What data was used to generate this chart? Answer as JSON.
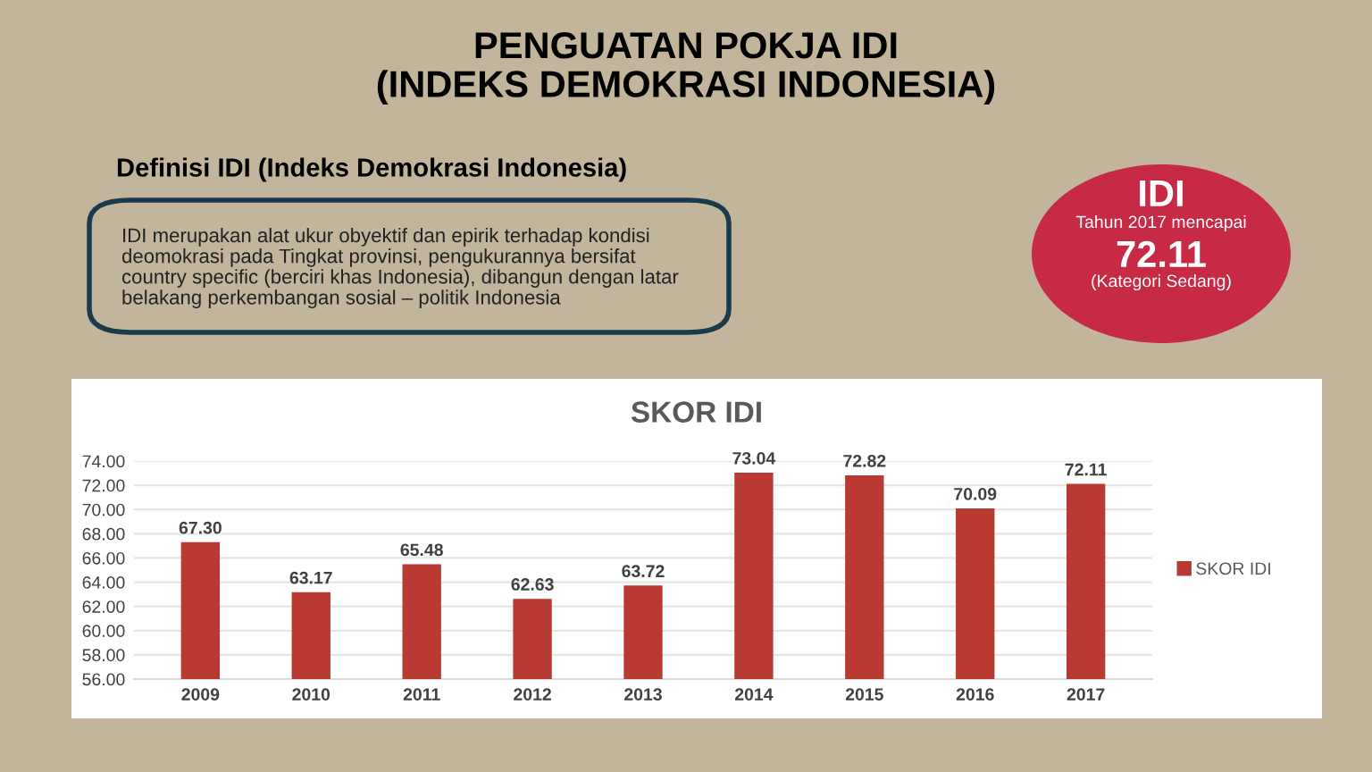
{
  "chart_data": {
    "type": "bar",
    "title": "SKOR IDI",
    "categories": [
      "2009",
      "2010",
      "2011",
      "2012",
      "2013",
      "2014",
      "2015",
      "2016",
      "2017"
    ],
    "series": [
      {
        "name": "SKOR IDI",
        "color": "#b93a32",
        "values": [
          67.3,
          63.17,
          65.48,
          62.63,
          63.72,
          73.04,
          72.82,
          70.09,
          72.11
        ],
        "value_labels": [
          "67.30",
          "63.17",
          "65.48",
          "62.63",
          "63.72",
          "73.04",
          "72.82",
          "70.09",
          "72.11"
        ]
      }
    ],
    "ylim": [
      56,
      74
    ],
    "yticks": [
      {
        "value": 56,
        "label": "56.00"
      },
      {
        "value": 58,
        "label": "58.00"
      },
      {
        "value": 60,
        "label": "60.00"
      },
      {
        "value": 62,
        "label": "62.00"
      },
      {
        "value": 64,
        "label": "64.00"
      },
      {
        "value": 66,
        "label": "66.00"
      },
      {
        "value": 68,
        "label": "68.00"
      },
      {
        "value": 70,
        "label": "70.00"
      },
      {
        "value": 72,
        "label": "72.00"
      },
      {
        "value": 74,
        "label": "74.00"
      }
    ],
    "grid": "y",
    "legend": "right",
    "annotations": [
      "PENGUATAN POKJA IDI\n(INDEKS DEMOKRASI INDONESIA)",
      "Definisi IDI (Indeks Demokrasi Indonesia)",
      "IDI merupakan alat ukur obyektif dan epirik terhadap kondisi\ndeomokrasi pada Tingkat provinsi, pengukurannya bersifat\ncountry specific (berciri khas Indonesia), dibangun dengan latar\nbelakang perkembangan sosial – politik Indonesia",
      "IDI",
      "Tahun 2017 mencapai",
      "72.11",
      "(Kategori Sedang)"
    ]
  }
}
